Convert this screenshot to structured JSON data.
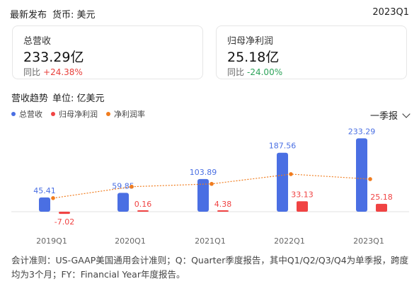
{
  "header": {
    "title": "最新发布",
    "currency_label": "货币: 美元",
    "period": "2023Q1"
  },
  "cards": {
    "revenue": {
      "label": "总营收",
      "value": "233.29亿",
      "yoy_label": "同比",
      "yoy_value": "+24.38%"
    },
    "profit": {
      "label": "归母净利润",
      "value": "25.18亿",
      "yoy_label": "同比",
      "yoy_value": "-24.00%"
    }
  },
  "trend": {
    "title": "营收趋势",
    "unit": "单位: 亿美元",
    "period_select": "一季报",
    "legend": [
      "总营收",
      "归母净利润",
      "净利润率"
    ]
  },
  "colors": {
    "revenue": "#4a6fe3",
    "profit": "#f04343",
    "margin": "#f07c1e",
    "positive": "#e8413c",
    "negative": "#2da35a"
  },
  "chart_data": {
    "type": "bar",
    "categories": [
      "2019Q1",
      "2020Q1",
      "2021Q1",
      "2022Q1",
      "2023Q1"
    ],
    "series": [
      {
        "name": "总营收",
        "type": "bar",
        "values": [
          45.41,
          59.85,
          103.89,
          187.56,
          233.29
        ],
        "labels": [
          "45.41",
          "59.85",
          "103.89",
          "187.56",
          "233.29"
        ]
      },
      {
        "name": "归母净利润",
        "type": "bar",
        "values": [
          -7.02,
          0.16,
          4.38,
          33.13,
          25.18
        ],
        "labels": [
          "-7.02",
          "0.16",
          "4.38",
          "33.13",
          "25.18"
        ]
      },
      {
        "name": "净利润率",
        "type": "line",
        "values": [
          -15.5,
          0.3,
          4.2,
          17.7,
          10.8
        ]
      }
    ]
  },
  "footnote": "会计准则：US-GAAP美国通用会计准则；Q：Quarter季度报告，其中Q1/Q2/Q3/Q4为单季报，跨度均为3个月；FY：Financial Year年度报告。"
}
